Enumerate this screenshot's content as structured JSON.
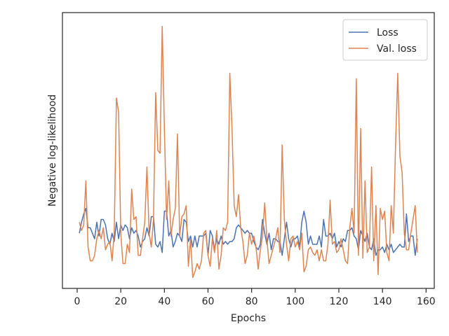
{
  "chart_data": {
    "type": "line",
    "xlabel": "Epochs",
    "ylabel": "Negative log-likelihood",
    "x": [
      1,
      2,
      3,
      4,
      5,
      6,
      7,
      8,
      9,
      10,
      11,
      12,
      13,
      14,
      15,
      16,
      17,
      18,
      19,
      20,
      21,
      22,
      23,
      24,
      25,
      26,
      27,
      28,
      29,
      30,
      31,
      32,
      33,
      34,
      35,
      36,
      37,
      38,
      39,
      40,
      41,
      42,
      43,
      44,
      45,
      46,
      47,
      48,
      49,
      50,
      51,
      52,
      53,
      54,
      55,
      56,
      57,
      58,
      59,
      60,
      61,
      62,
      63,
      64,
      65,
      66,
      67,
      68,
      69,
      70,
      71,
      72,
      73,
      74,
      75,
      76,
      77,
      78,
      79,
      80,
      81,
      82,
      83,
      84,
      85,
      86,
      87,
      88,
      89,
      90,
      91,
      92,
      93,
      94,
      95,
      96,
      97,
      98,
      99,
      100,
      101,
      102,
      103,
      104,
      105,
      106,
      107,
      108,
      109,
      110,
      111,
      112,
      113,
      114,
      115,
      116,
      117,
      118,
      119,
      120,
      121,
      122,
      123,
      124,
      125,
      126,
      127,
      128,
      129,
      130,
      131,
      132,
      133,
      134,
      135,
      136,
      137,
      138,
      139,
      140,
      141,
      142,
      143,
      144,
      145,
      146,
      147,
      148,
      149,
      150,
      151,
      152,
      153,
      154,
      155,
      156
    ],
    "series": [
      {
        "name": "Loss",
        "color": "#4c72b0",
        "values": [
          20,
          24,
          27,
          29,
          22,
          22,
          20,
          18,
          24,
          19,
          25,
          25,
          23,
          18,
          16,
          20,
          17,
          24,
          18,
          23,
          21,
          23,
          22,
          18,
          22,
          20,
          21,
          19,
          15,
          17,
          18,
          22,
          19,
          26,
          26,
          16,
          15,
          17,
          13,
          28,
          28,
          19,
          21,
          15,
          17,
          20,
          19,
          17,
          25,
          24,
          17,
          19,
          15,
          19,
          15,
          19,
          19,
          19,
          20,
          12,
          21,
          19,
          14,
          18,
          16,
          19,
          16,
          17,
          16,
          17,
          17,
          18,
          22,
          23,
          22,
          21,
          20,
          21,
          20,
          20,
          17,
          15,
          14,
          16,
          25,
          20,
          16,
          20,
          14,
          18,
          18,
          17,
          17,
          12,
          18,
          24,
          18,
          15,
          18,
          18,
          19,
          15,
          24,
          28,
          24,
          16,
          19,
          16,
          16,
          16,
          19,
          15,
          25,
          19,
          19,
          20,
          18,
          20,
          15,
          17,
          15,
          18,
          17,
          21,
          21,
          22,
          19,
          18,
          14,
          21,
          19,
          17,
          20,
          15,
          14,
          18,
          12,
          14,
          14,
          15,
          13,
          16,
          14,
          16,
          13,
          14,
          15,
          16,
          15,
          15,
          27,
          17,
          19,
          19,
          12,
          18
        ]
      },
      {
        "name": "Val. loss",
        "color": "#dd8452",
        "values": [
          24,
          21,
          23,
          39,
          15,
          10,
          10,
          12,
          18,
          21,
          18,
          22,
          14,
          16,
          17,
          10,
          20,
          69,
          64,
          20,
          9,
          9,
          16,
          13,
          36,
          25,
          26,
          12,
          12,
          18,
          24,
          44,
          20,
          15,
          25,
          71,
          50,
          49,
          95,
          58,
          25,
          39,
          19,
          25,
          29,
          56,
          19,
          26,
          27,
          30,
          8,
          18,
          4,
          6,
          9,
          7,
          10,
          20,
          21,
          12,
          8,
          18,
          13,
          21,
          7,
          12,
          22,
          21,
          24,
          78,
          58,
          30,
          26,
          34,
          22,
          17,
          9,
          12,
          20,
          16,
          19,
          15,
          7,
          14,
          19,
          31,
          18,
          9,
          12,
          15,
          18,
          22,
          13,
          52,
          25,
          16,
          10,
          18,
          19,
          15,
          17,
          14,
          20,
          6,
          8,
          14,
          15,
          13,
          12,
          14,
          10,
          14,
          10,
          10,
          16,
          32,
          16,
          17,
          13,
          14,
          18,
          14,
          10,
          9,
          22,
          29,
          20,
          76,
          12,
          58,
          11,
          39,
          13,
          15,
          44,
          10,
          30,
          5,
          29,
          25,
          28,
          13,
          10,
          30,
          20,
          52,
          78,
          48,
          42,
          20,
          14,
          14,
          20,
          25,
          30,
          13
        ]
      }
    ],
    "xlim": [
      -6.75,
      163.75
    ],
    "xticks": [
      0,
      20,
      40,
      60,
      80,
      100,
      120,
      140,
      160
    ],
    "ylim": [
      0,
      100
    ],
    "legend": "upper right"
  }
}
